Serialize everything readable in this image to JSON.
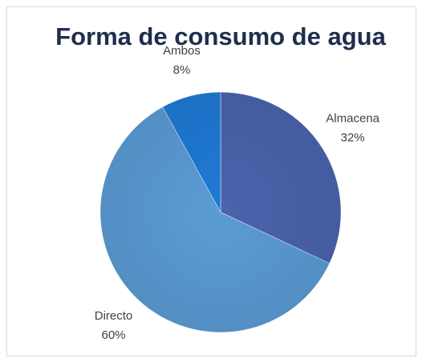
{
  "chart_data": {
    "type": "pie",
    "title": "Forma de consumo de agua",
    "categories": [
      "Almacena",
      "Directo",
      "Ambos"
    ],
    "values": [
      32,
      60,
      8
    ],
    "value_labels": [
      "32%",
      "60%",
      "8%"
    ],
    "colors": [
      "#4a64ad",
      "#5b9bd5",
      "#1f7ad6"
    ]
  }
}
